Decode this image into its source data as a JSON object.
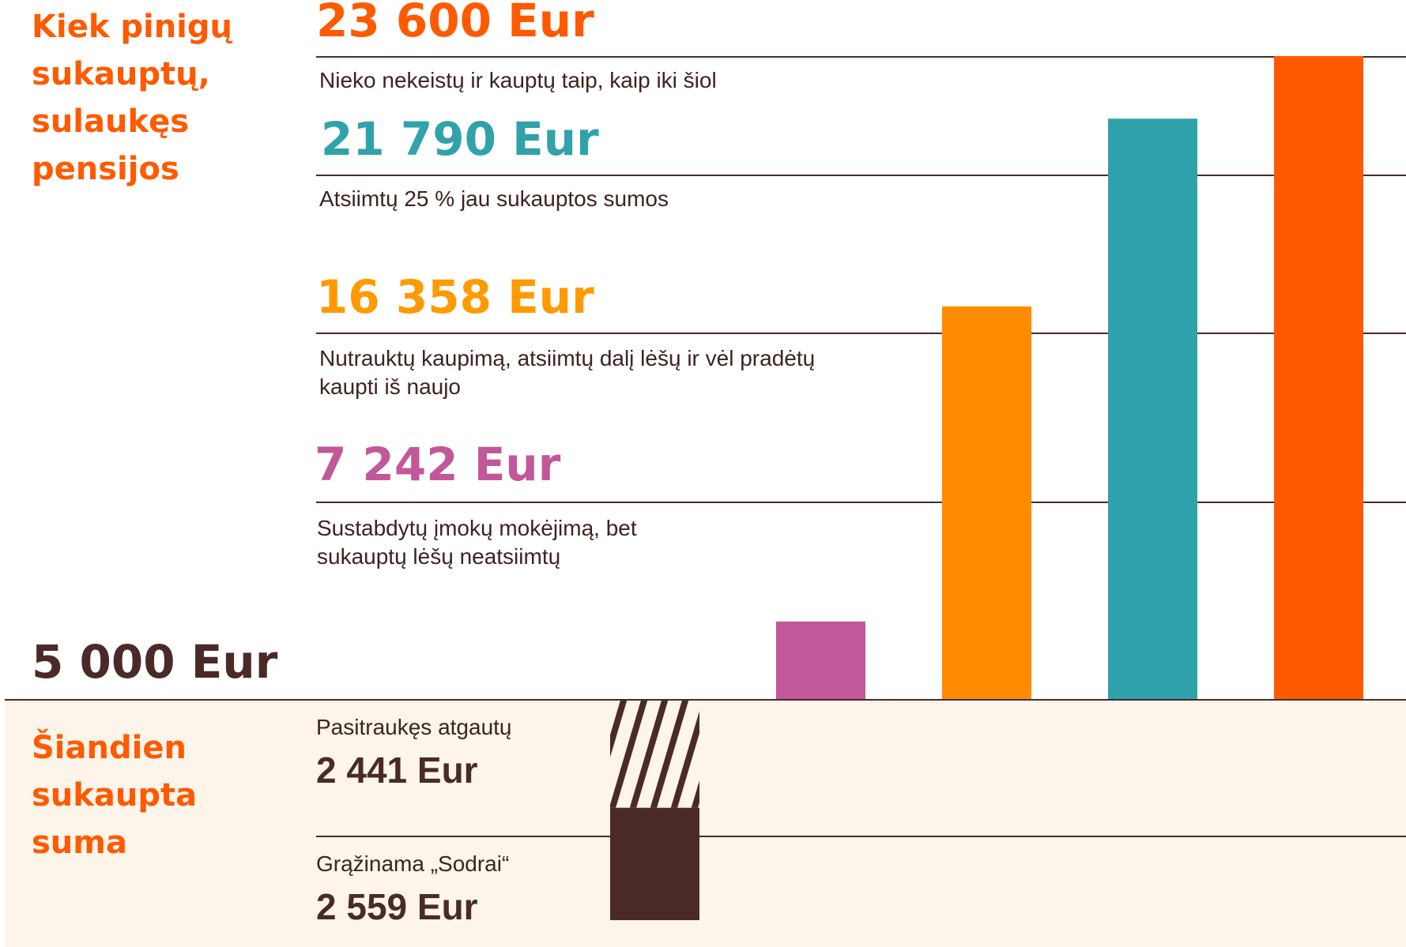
{
  "header": {
    "title": "Kiek pinigų\nsukauptų,\nsulaukęs\npensijos",
    "baseline_amount": "5 000 Eur"
  },
  "today": {
    "title": "Šiandien\nsukaupta\nsuma",
    "withdraw_label": "Pasitraukęs atgautų",
    "withdraw_amount": "2 441 Eur",
    "sodra_label": "Grąžinama „Sodrai“",
    "sodra_amount": "2 559 Eur"
  },
  "scenarios": [
    {
      "amount": "7 242 Eur",
      "desc": "Sustabdytų įmokų mokėjimą, bet\nsukauptų lėšų neatsiimtų"
    },
    {
      "amount": "16 358 Eur",
      "desc": "Nutrauktų kaupimą, atsiimtų dalį lėšų ir vėl pradėtų\nkaupti iš naujo"
    },
    {
      "amount": "21 790 Eur",
      "desc": "Atsiimtų 25 % jau sukauptos sumos"
    },
    {
      "amount": "23 600 Eur",
      "desc": "Nieko nekeistų ir kauptų taip, kaip iki šiol"
    }
  ],
  "chart_data": {
    "type": "bar",
    "categories": [
      "Sustabdytų įmokų mokėjimą, bet sukauptų lėšų neatsiimtų",
      "Nutrauktų kaupimą, atsiimtų dalį lėšų ir vėl pradėtų kaupti iš naujo",
      "Atsiimtų 25 % jau sukauptos sumos",
      "Nieko nekeistų ir kauptų taip, kaip iki šiol"
    ],
    "values": [
      7242,
      16358,
      21790,
      23600
    ],
    "baseline": 5000,
    "unit": "Eur",
    "colors": [
      "#c2579a",
      "#ff8c00",
      "#30a2ab",
      "#ff5a00"
    ],
    "today_split": {
      "withdraw": 2441,
      "sodra": 2559
    },
    "today_colors": {
      "withdraw": "hatched",
      "sodra": "#4a2a27"
    }
  }
}
